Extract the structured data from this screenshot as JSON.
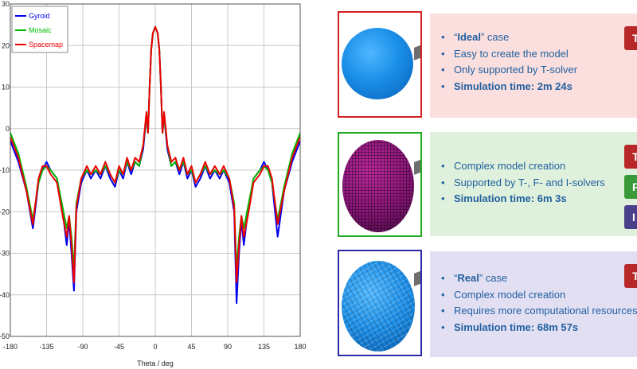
{
  "chart_data": {
    "type": "line",
    "xlabel": "Theta / deg",
    "ylabel": "",
    "xlim": [
      -180,
      180
    ],
    "ylim": [
      -50,
      30
    ],
    "xticks": [
      -180,
      -135,
      -90,
      -45,
      0,
      45,
      90,
      135,
      180
    ],
    "yticks": [
      30,
      20,
      10,
      0,
      -10,
      -20,
      -30,
      -40,
      -50
    ],
    "grid": true,
    "legend_position": "top-left",
    "series": [
      {
        "name": "Gyroid",
        "color": "#0000ee",
        "x": [
          -180,
          -170,
          -160,
          -152,
          -145,
          -140,
          -135,
          -130,
          -122,
          -115,
          -110,
          -107,
          -104,
          -101,
          -98,
          -92,
          -85,
          -80,
          -74,
          -68,
          -62,
          -56,
          -50,
          -45,
          -40,
          -35,
          -30,
          -25,
          -20,
          -15,
          -11,
          -9,
          -7,
          -5,
          -3,
          0,
          3,
          5,
          7,
          9,
          11,
          15,
          20,
          25,
          30,
          35,
          40,
          45,
          50,
          56,
          62,
          68,
          74,
          80,
          85,
          92,
          98,
          101,
          104,
          107,
          110,
          115,
          122,
          130,
          135,
          140,
          145,
          152,
          160,
          170,
          180
        ],
        "y": [
          -3,
          -8,
          -15,
          -24,
          -13,
          -10,
          -8,
          -10,
          -12,
          -20,
          -28,
          -22,
          -30,
          -39,
          -20,
          -13,
          -10,
          -12,
          -10,
          -12,
          -9,
          -12,
          -14,
          -10,
          -12,
          -8,
          -11,
          -8,
          -9,
          -5,
          3,
          -1,
          10,
          19,
          23,
          24.5,
          23,
          19,
          10,
          -1,
          3,
          -5,
          -9,
          -8,
          -11,
          -8,
          -12,
          -10,
          -14,
          -12,
          -9,
          -12,
          -10,
          -12,
          -10,
          -13,
          -20,
          -42,
          -30,
          -22,
          -28,
          -20,
          -12,
          -10,
          -8,
          -10,
          -13,
          -26,
          -15,
          -8,
          -3
        ]
      },
      {
        "name": "Mosaic",
        "color": "#00bb00",
        "x": [
          -180,
          -170,
          -160,
          -152,
          -145,
          -140,
          -135,
          -130,
          -122,
          -115,
          -110,
          -107,
          -104,
          -101,
          -98,
          -92,
          -85,
          -80,
          -74,
          -68,
          -62,
          -56,
          -50,
          -45,
          -40,
          -35,
          -30,
          -25,
          -20,
          -15,
          -11,
          -9,
          -7,
          -5,
          -3,
          0,
          3,
          5,
          7,
          9,
          11,
          15,
          20,
          25,
          30,
          35,
          40,
          45,
          50,
          56,
          62,
          68,
          74,
          80,
          85,
          92,
          98,
          101,
          104,
          107,
          110,
          115,
          122,
          130,
          135,
          140,
          145,
          152,
          160,
          170,
          180
        ],
        "y": [
          -1,
          -6,
          -14,
          -22,
          -13,
          -10,
          -9,
          -10,
          -12,
          -19,
          -24,
          -21,
          -26,
          -34,
          -18,
          -12,
          -10,
          -11,
          -10,
          -11,
          -9,
          -11,
          -13,
          -10,
          -11,
          -8,
          -10,
          -8,
          -9,
          -4,
          3,
          -1,
          10,
          19,
          23,
          24.5,
          23,
          19,
          10,
          -1,
          3,
          -4,
          -9,
          -8,
          -10,
          -8,
          -11,
          -10,
          -13,
          -11,
          -9,
          -11,
          -10,
          -11,
          -10,
          -12,
          -18,
          -34,
          -26,
          -21,
          -24,
          -19,
          -12,
          -10,
          -9,
          -10,
          -13,
          -22,
          -14,
          -6,
          -1
        ]
      },
      {
        "name": "Spacemap",
        "color": "#ee0000",
        "x": [
          -180,
          -170,
          -160,
          -152,
          -145,
          -140,
          -135,
          -130,
          -122,
          -115,
          -110,
          -107,
          -104,
          -101,
          -98,
          -92,
          -85,
          -80,
          -74,
          -68,
          -62,
          -56,
          -50,
          -45,
          -40,
          -35,
          -30,
          -25,
          -20,
          -15,
          -11,
          -9,
          -7,
          -5,
          -3,
          0,
          3,
          5,
          7,
          9,
          11,
          15,
          20,
          25,
          30,
          35,
          40,
          45,
          50,
          56,
          62,
          68,
          74,
          80,
          85,
          92,
          98,
          101,
          104,
          107,
          110,
          115,
          122,
          130,
          135,
          140,
          145,
          152,
          160,
          170,
          180
        ],
        "y": [
          -2,
          -7,
          -15,
          -23,
          -12,
          -9,
          -9,
          -11,
          -13,
          -21,
          -26,
          -21,
          -28,
          -37,
          -19,
          -12,
          -9,
          -11,
          -9,
          -11,
          -8,
          -11,
          -13,
          -9,
          -11,
          -7,
          -10,
          -7,
          -8,
          -4,
          4,
          -1,
          10,
          19,
          23,
          24.5,
          23,
          19,
          10,
          -1,
          4,
          -4,
          -8,
          -7,
          -10,
          -7,
          -11,
          -9,
          -13,
          -11,
          -8,
          -11,
          -9,
          -11,
          -9,
          -12,
          -19,
          -37,
          -28,
          -21,
          -26,
          -21,
          -13,
          -11,
          -9,
          -9,
          -12,
          -23,
          -15,
          -7,
          -2
        ]
      }
    ]
  },
  "panels": [
    {
      "id": "ideal",
      "border_color": "#d42020",
      "info_bg": "#fbdfdf",
      "ball_style": "smooth",
      "bullets": [
        {
          "pre": "“",
          "bold": "Ideal",
          "post": "” case"
        },
        {
          "pre": "Easy to create the model",
          "bold": "",
          "post": ""
        },
        {
          "pre": "Only supported by T-solver",
          "bold": "",
          "post": ""
        },
        {
          "pre": "",
          "bold": "Simulation time: 2m 24s",
          "post": ""
        }
      ],
      "tags": [
        {
          "label": "T",
          "color": "#b82828"
        }
      ]
    },
    {
      "id": "mosaic",
      "border_color": "#22aa22",
      "info_bg": "#dff1dc",
      "ball_style": "mosaic",
      "bullets": [
        {
          "pre": "Complex model creation",
          "bold": "",
          "post": ""
        },
        {
          "pre": "Supported by T-, F- and I-solvers",
          "bold": "",
          "post": ""
        },
        {
          "pre": "",
          "bold": "Simulation time: 6m 3s",
          "post": ""
        }
      ],
      "tags": [
        {
          "label": "T",
          "color": "#b82828"
        },
        {
          "label": "F",
          "color": "#3a9a3a"
        },
        {
          "label": "I",
          "color": "#4a3f8a"
        }
      ]
    },
    {
      "id": "real",
      "border_color": "#2a2aaa",
      "info_bg": "#e2dff3",
      "ball_style": "faceted",
      "bullets": [
        {
          "pre": "“",
          "bold": "Real",
          "post": "” case"
        },
        {
          "pre": "Complex model creation",
          "bold": "",
          "post": ""
        },
        {
          "pre": "Requires more computational resources",
          "bold": "",
          "post": ""
        },
        {
          "pre": "",
          "bold": "Simulation time: 68m 57s",
          "post": ""
        }
      ],
      "tags": [
        {
          "label": "T",
          "color": "#b82828"
        }
      ]
    }
  ]
}
